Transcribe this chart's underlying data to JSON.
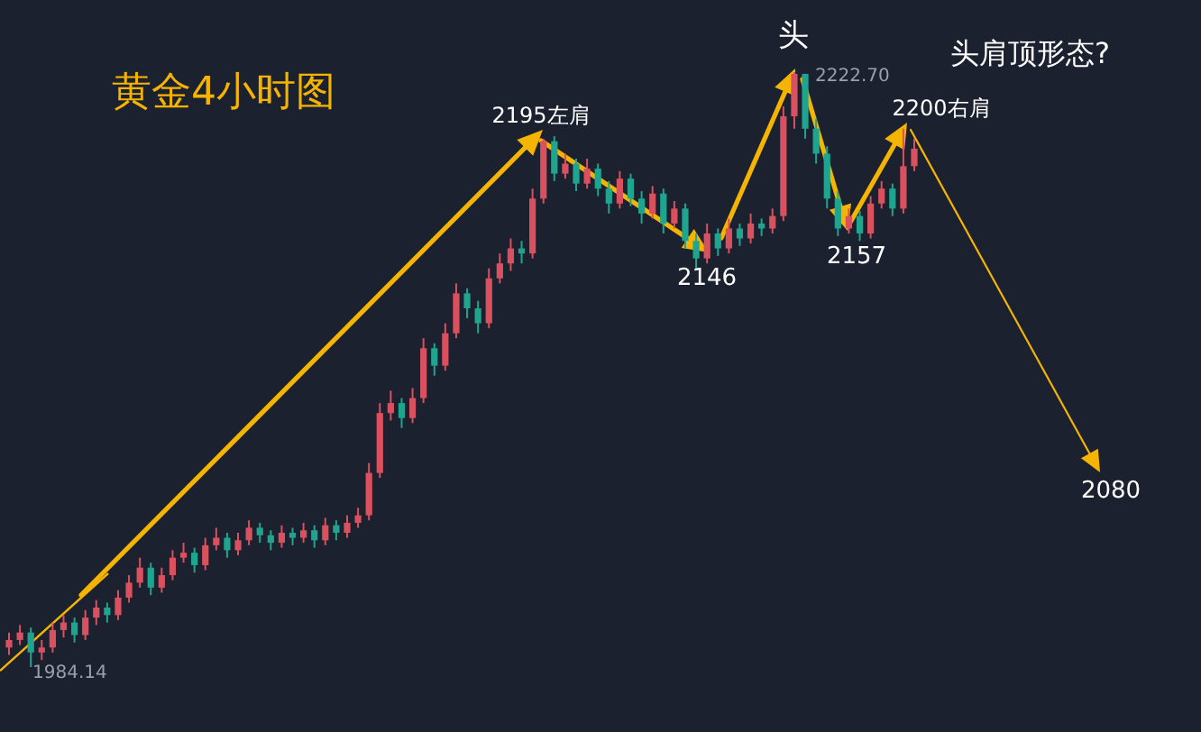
{
  "chart_data": {
    "type": "candlestick",
    "title": "黄金4小时图",
    "categories": [
      null,
      null,
      null,
      null,
      null,
      null,
      null,
      null,
      null,
      null,
      null,
      null,
      null,
      null,
      null,
      null,
      null,
      null,
      null,
      null,
      null,
      null,
      null,
      null,
      null,
      null,
      null,
      null,
      null,
      null,
      null,
      null,
      null,
      null,
      null,
      null,
      null,
      null,
      null,
      null,
      null,
      null,
      null,
      null,
      null,
      null,
      null,
      null,
      null,
      null,
      null,
      null,
      null,
      null,
      null,
      null,
      null,
      null,
      null,
      null,
      null,
      null,
      null,
      null,
      null,
      null,
      null,
      null,
      null,
      null,
      null,
      null,
      null,
      null,
      null,
      null,
      null,
      null,
      null,
      null,
      null,
      null,
      null,
      null
    ],
    "colors": [
      "#d9515f",
      "#d9515f",
      "#1fa58f",
      "#d9515f",
      "#d9515f",
      "#d9515f",
      "#1fa58f",
      "#d9515f",
      "#d9515f",
      "#1fa58f",
      "#d9515f",
      "#d9515f",
      "#d9515f",
      "#1fa58f",
      "#d9515f",
      "#d9515f",
      "#d9515f",
      "#1fa58f",
      "#d9515f",
      "#d9515f",
      "#1fa58f",
      "#d9515f",
      "#d9515f",
      "#1fa58f",
      "#1fa58f",
      "#d9515f",
      "#1fa58f",
      "#d9515f",
      "#1fa58f",
      "#d9515f",
      "#1fa58f",
      "#d9515f",
      "#d9515f",
      "#d9515f",
      "#d9515f",
      "#d9515f",
      "#1fa58f",
      "#d9515f",
      "#d9515f",
      "#1fa58f",
      "#d9515f",
      "#d9515f",
      "#1fa58f",
      "#1fa58f",
      "#d9515f",
      "#d9515f",
      "#d9515f",
      "#1fa58f",
      "#d9515f",
      "#d9515f",
      "#1fa58f",
      "#d9515f",
      "#1fa58f",
      "#d9515f",
      "#1fa58f",
      "#1fa58f",
      "#d9515f",
      "#1fa58f",
      "#1fa58f",
      "#d9515f",
      "#1fa58f",
      "#d9515f",
      "#1fa58f",
      "#1fa58f",
      "#d9515f",
      "#1fa58f",
      "#d9515f",
      "#1fa58f",
      "#d9515f",
      "#1fa58f",
      "#d9515f",
      "#d9515f",
      "#d9515f",
      "#1fa58f",
      "#1fa58f",
      "#1fa58f",
      "#1fa58f",
      "#d9515f",
      "#1fa58f",
      "#d9515f",
      "#d9515f",
      "#1fa58f",
      "#d9515f",
      "#d9515f"
    ],
    "ohlc": [
      [
        1992,
        1998,
        1989,
        1995
      ],
      [
        1995,
        2001,
        1993,
        1998
      ],
      [
        1998,
        2000,
        1984.14,
        1990
      ],
      [
        1990,
        1995,
        1987,
        1992
      ],
      [
        1992,
        2002,
        1990,
        1999
      ],
      [
        1999,
        2005,
        1996,
        2002
      ],
      [
        2002,
        2004,
        1994,
        1997
      ],
      [
        1997,
        2007,
        1995,
        2004
      ],
      [
        2004,
        2011,
        2001,
        2008
      ],
      [
        2008,
        2010,
        2002,
        2005
      ],
      [
        2005,
        2015,
        2003,
        2012
      ],
      [
        2012,
        2021,
        2010,
        2018
      ],
      [
        2018,
        2028,
        2016,
        2024
      ],
      [
        2024,
        2026,
        2013,
        2016
      ],
      [
        2016,
        2024,
        2014,
        2021
      ],
      [
        2021,
        2031,
        2019,
        2028
      ],
      [
        2028,
        2034,
        2026,
        2030
      ],
      [
        2030,
        2032,
        2022,
        2025
      ],
      [
        2025,
        2036,
        2023,
        2033
      ],
      [
        2033,
        2040,
        2031,
        2036
      ],
      [
        2036,
        2038,
        2028,
        2031
      ],
      [
        2031,
        2038,
        2029,
        2035
      ],
      [
        2035,
        2043,
        2033,
        2040
      ],
      [
        2040,
        2042,
        2034,
        2037
      ],
      [
        2037,
        2039,
        2031,
        2034
      ],
      [
        2034,
        2041,
        2032,
        2038
      ],
      [
        2038,
        2040,
        2033,
        2036
      ],
      [
        2036,
        2042,
        2034,
        2039
      ],
      [
        2039,
        2041,
        2032,
        2035
      ],
      [
        2035,
        2044,
        2033,
        2041
      ],
      [
        2041,
        2043,
        2035,
        2038
      ],
      [
        2038,
        2045,
        2036,
        2042
      ],
      [
        2042,
        2048,
        2040,
        2045
      ],
      [
        2045,
        2066,
        2043,
        2062
      ],
      [
        2062,
        2090,
        2060,
        2086
      ],
      [
        2086,
        2095,
        2083,
        2090
      ],
      [
        2090,
        2092,
        2080,
        2084
      ],
      [
        2084,
        2096,
        2082,
        2092
      ],
      [
        2092,
        2116,
        2090,
        2112
      ],
      [
        2112,
        2114,
        2101,
        2105
      ],
      [
        2105,
        2122,
        2103,
        2118
      ],
      [
        2118,
        2138,
        2116,
        2134
      ],
      [
        2134,
        2136,
        2124,
        2128
      ],
      [
        2128,
        2131,
        2118,
        2122
      ],
      [
        2122,
        2144,
        2120,
        2140
      ],
      [
        2140,
        2150,
        2138,
        2146
      ],
      [
        2146,
        2156,
        2143,
        2152
      ],
      [
        2152,
        2155,
        2146,
        2150
      ],
      [
        2150,
        2176,
        2148,
        2172
      ],
      [
        2172,
        2196,
        2170,
        2195
      ],
      [
        2195,
        2197,
        2179,
        2182
      ],
      [
        2182,
        2190,
        2180,
        2186
      ],
      [
        2186,
        2188,
        2175,
        2178
      ],
      [
        2178,
        2188,
        2176,
        2184
      ],
      [
        2184,
        2186,
        2173,
        2176
      ],
      [
        2176,
        2179,
        2166,
        2170
      ],
      [
        2170,
        2183,
        2168,
        2180
      ],
      [
        2180,
        2182,
        2169,
        2172
      ],
      [
        2172,
        2175,
        2162,
        2166
      ],
      [
        2166,
        2177,
        2164,
        2174
      ],
      [
        2174,
        2176,
        2158,
        2162
      ],
      [
        2162,
        2171,
        2160,
        2168
      ],
      [
        2168,
        2170,
        2152,
        2155
      ],
      [
        2155,
        2158,
        2144,
        2148
      ],
      [
        2148,
        2162,
        2146,
        2158
      ],
      [
        2158,
        2160,
        2149,
        2152
      ],
      [
        2152,
        2164,
        2150,
        2160
      ],
      [
        2160,
        2162,
        2153,
        2156
      ],
      [
        2156,
        2166,
        2154,
        2162
      ],
      [
        2162,
        2164,
        2157,
        2160
      ],
      [
        2160,
        2168,
        2158,
        2165
      ],
      [
        2165,
        2209,
        2163,
        2205
      ],
      [
        2205,
        2222.7,
        2200,
        2222
      ],
      [
        2222,
        2222,
        2196,
        2200
      ],
      [
        2200,
        2204,
        2186,
        2190
      ],
      [
        2190,
        2193,
        2168,
        2172
      ],
      [
        2172,
        2175,
        2157,
        2160
      ],
      [
        2160,
        2168,
        2158,
        2165
      ],
      [
        2165,
        2167,
        2155,
        2158
      ],
      [
        2158,
        2173,
        2156,
        2170
      ],
      [
        2170,
        2179,
        2168,
        2176
      ],
      [
        2176,
        2178,
        2165,
        2168
      ],
      [
        2168,
        2200,
        2166,
        2185
      ],
      [
        2185,
        2196,
        2183,
        2192
      ]
    ],
    "annotations": [
      "2195左肩",
      "2146",
      "头",
      "2222.70",
      "2157",
      "2200右肩",
      "头肩顶形态?",
      "2080",
      "1984.14"
    ]
  }
}
